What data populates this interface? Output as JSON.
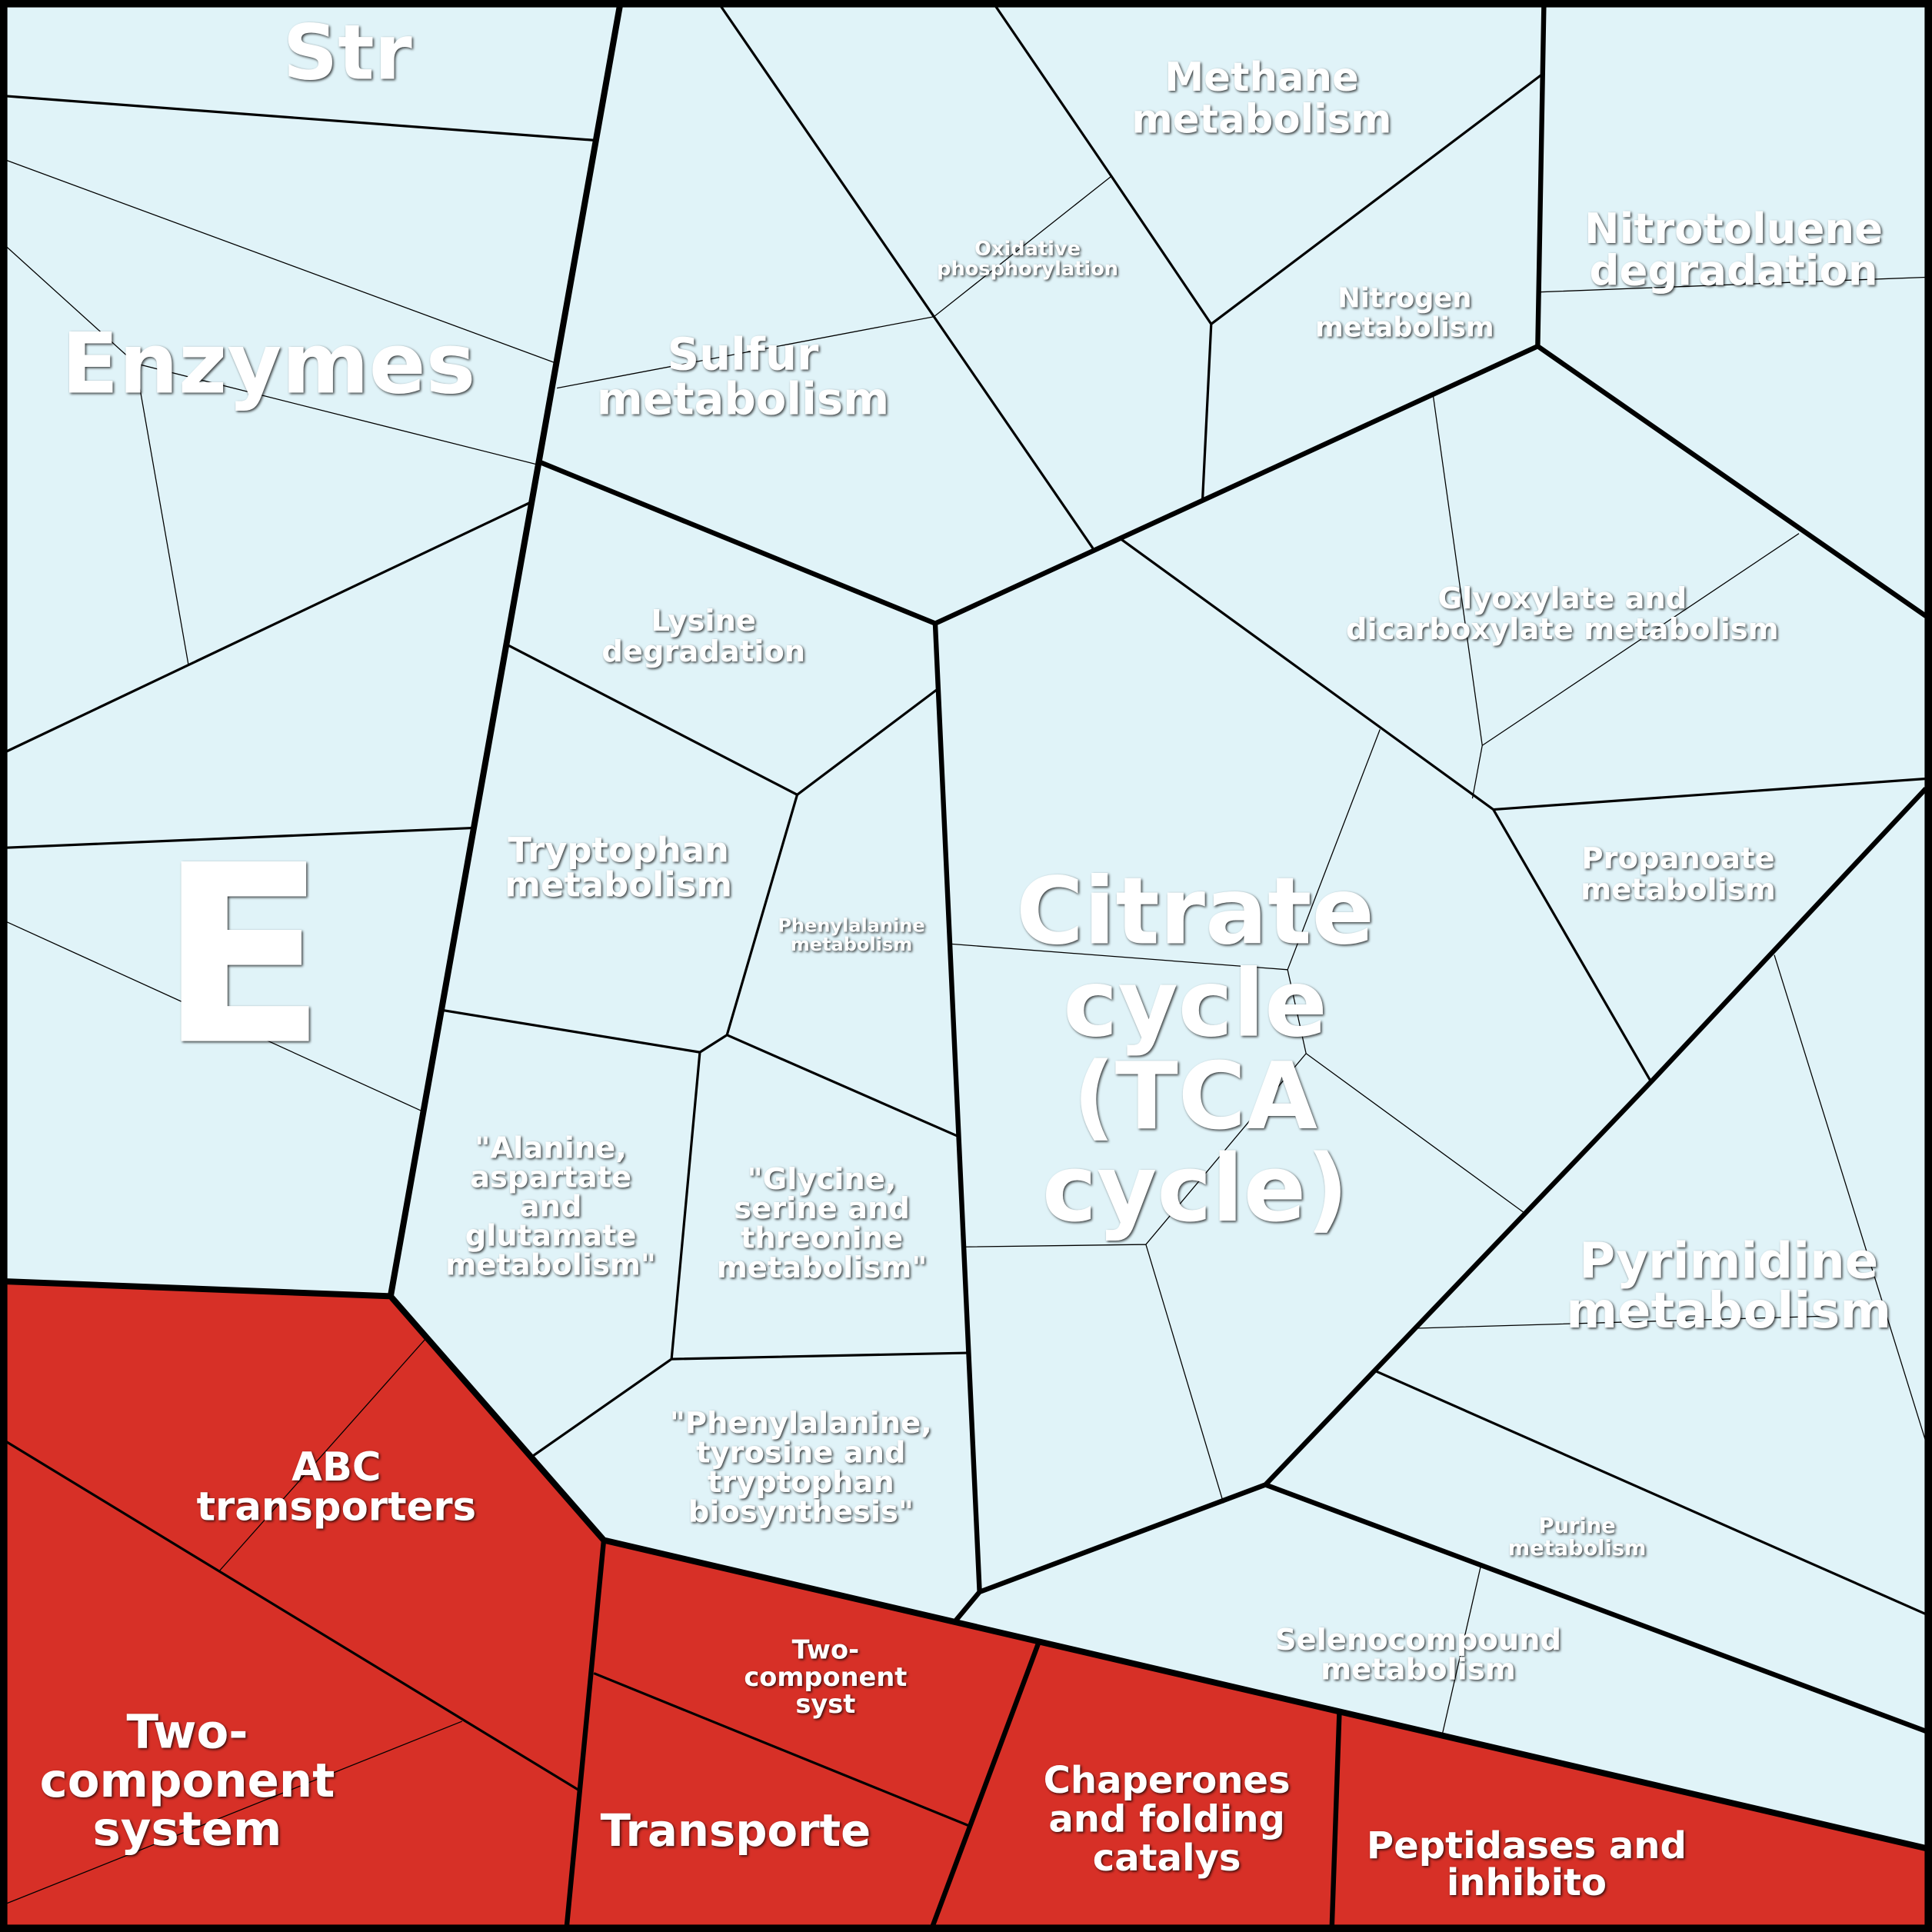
{
  "labels": [
    [
      "Str"
    ],
    [
      "Enzymes"
    ],
    [
      "E"
    ],
    [
      "Methane",
      "metabolism"
    ],
    [
      "Oxidative",
      "phosphorylation"
    ],
    [
      "Nitrotoluene",
      "degradation"
    ],
    [
      "Sulfur",
      "metabolism"
    ],
    [
      "Nitrogen",
      "metabolism"
    ],
    [
      "Glyoxylate and",
      "dicarboxylate metabolism"
    ],
    [
      "Lysine",
      "degradation"
    ],
    [
      "Tryptophan",
      "metabolism"
    ],
    [
      "Phenylalanine",
      "metabolism"
    ],
    [
      "Citrate",
      "cycle",
      "(TCA",
      "cycle)"
    ],
    [
      "Propanoate",
      "metabolism"
    ],
    [
      "\"Alanine,",
      "aspartate",
      "and",
      "glutamate",
      "metabolism\""
    ],
    [
      "\"Glycine,",
      "serine and",
      "threonine",
      "metabolism\""
    ],
    [
      "Pyrimidine",
      "metabolism"
    ],
    [
      "\"Phenylalanine,",
      "tyrosine and",
      "tryptophan",
      "biosynthesis\""
    ],
    [
      "Purine",
      "metabolism"
    ],
    [
      "Selenocompound",
      "metabolism"
    ],
    [
      "ABC",
      "transporters"
    ],
    [
      "Two-",
      "component",
      "system"
    ],
    [
      "Two-",
      "component",
      "syst"
    ],
    [
      "Transporte"
    ],
    [
      "Chaperones",
      "and folding",
      "catalys"
    ],
    [
      "Peptidases and",
      "inhibito"
    ]
  ]
}
